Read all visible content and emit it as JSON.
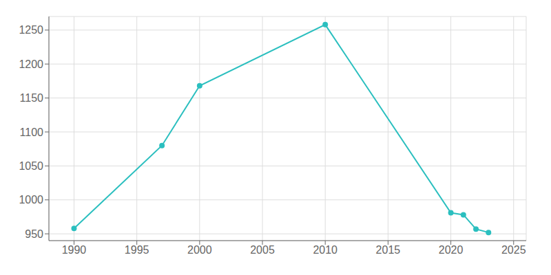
{
  "chart_data": {
    "type": "line",
    "x": [
      1990,
      1997,
      2000,
      2010,
      2020,
      2021,
      2022,
      2023
    ],
    "values": [
      958,
      1080,
      1168,
      1258,
      981,
      978,
      957,
      952
    ],
    "color": "#2bbfbf",
    "marker": "circle",
    "xlim": [
      1988,
      2026
    ],
    "ylim": [
      940,
      1270
    ],
    "xticks": [
      1990,
      1995,
      2000,
      2005,
      2010,
      2015,
      2020,
      2025
    ],
    "yticks": [
      950,
      1000,
      1050,
      1100,
      1150,
      1200,
      1250
    ],
    "grid": true
  }
}
